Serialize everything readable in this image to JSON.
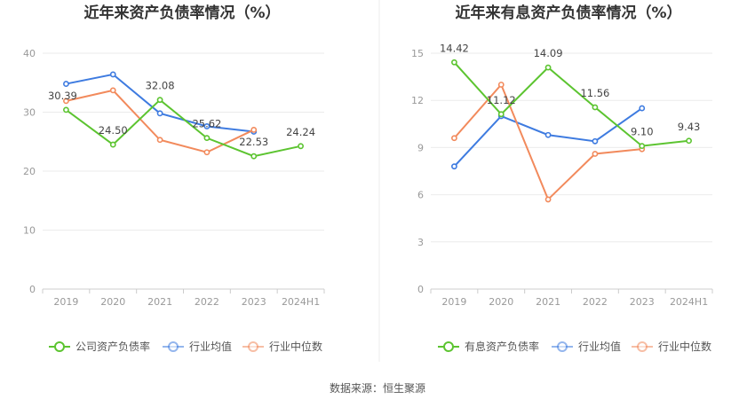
{
  "chart_data": [
    {
      "type": "line",
      "title": "近年来资产负债率情况（%）",
      "categories": [
        "2019",
        "2020",
        "2021",
        "2022",
        "2023",
        "2024H1"
      ],
      "ylim": [
        0,
        40
      ],
      "yticks": [
        0,
        10,
        20,
        30,
        40
      ],
      "grid": true,
      "legend_position": "bottom",
      "series": [
        {
          "name": "公司资产负债率",
          "color": "#5cc430",
          "values": [
            30.39,
            24.5,
            32.08,
            25.62,
            22.53,
            24.24
          ],
          "labels": [
            "30.39",
            "24.50",
            "32.08",
            "25.62",
            "22.53",
            "24.24"
          ]
        },
        {
          "name": "行业均值",
          "color": "#3e7be0",
          "values": [
            34.8,
            36.4,
            29.8,
            27.6,
            26.7,
            null
          ]
        },
        {
          "name": "行业中位数",
          "color": "#f28a5c",
          "values": [
            31.9,
            33.7,
            25.3,
            23.2,
            27.0,
            null
          ]
        }
      ]
    },
    {
      "type": "line",
      "title": "近年来有息资产负债率情况（%）",
      "categories": [
        "2019",
        "2020",
        "2021",
        "2022",
        "2023",
        "2024H1"
      ],
      "ylim": [
        0,
        15
      ],
      "yticks": [
        0,
        3,
        6,
        9,
        12,
        15
      ],
      "grid": true,
      "legend_position": "bottom",
      "series": [
        {
          "name": "有息资产负债率",
          "color": "#5cc430",
          "values": [
            14.42,
            11.12,
            14.09,
            11.56,
            9.1,
            9.43
          ],
          "labels": [
            "14.42",
            "11.12",
            "14.09",
            "11.56",
            "9.10",
            "9.43"
          ]
        },
        {
          "name": "行业均值",
          "color": "#3e7be0",
          "values": [
            7.8,
            11.0,
            9.8,
            9.4,
            11.5,
            null
          ]
        },
        {
          "name": "行业中位数",
          "color": "#f28a5c",
          "values": [
            9.6,
            13.0,
            5.7,
            8.6,
            8.9,
            null
          ]
        }
      ]
    }
  ],
  "footer": {
    "source": "数据来源：恒生聚源"
  }
}
